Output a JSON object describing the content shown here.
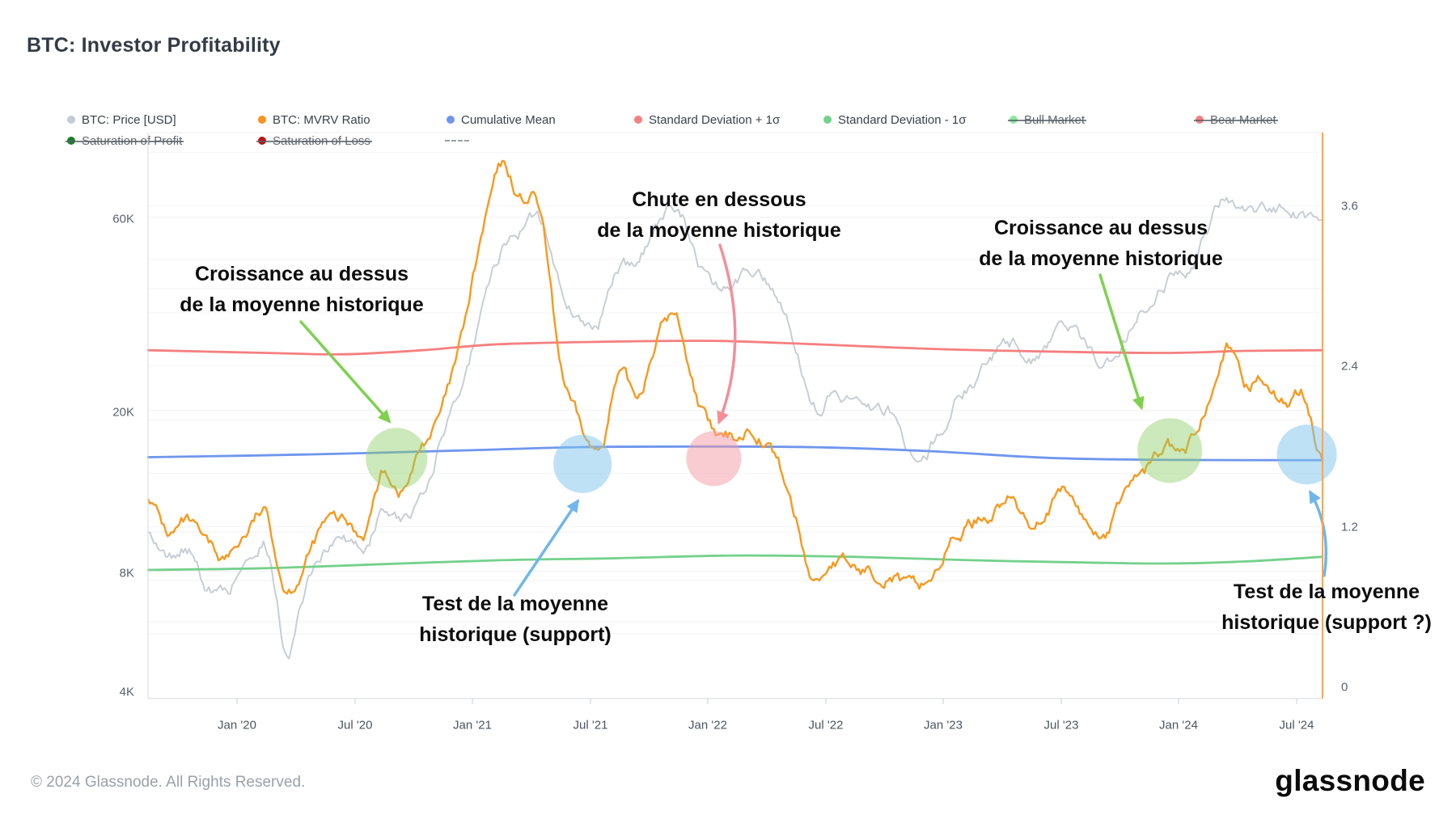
{
  "title": "BTC: Investor Profitability",
  "legend": {
    "row1": [
      {
        "label": "BTC: Price [USD]",
        "color": "#c5cbd2",
        "struck": false
      },
      {
        "label": "BTC: MVRV Ratio",
        "color": "#f7941d",
        "struck": false
      },
      {
        "label": "Cumulative Mean",
        "color": "#6f96ee",
        "struck": false
      },
      {
        "label": "Standard Deviation + 1σ",
        "color": "#f57f7f",
        "struck": false
      },
      {
        "label": "Standard Deviation - 1σ",
        "color": "#74d18c",
        "struck": false
      },
      {
        "label": "Bull Market",
        "color": "#8be89c",
        "struck": true
      },
      {
        "label": "Bear Market",
        "color": "#f28282",
        "struck": true
      }
    ],
    "row2": [
      {
        "label": "Saturation of Profit",
        "color": "#1b7e2b",
        "struck": true
      },
      {
        "label": "Saturation of Loss",
        "color": "#bb1111",
        "struck": true
      }
    ]
  },
  "axis": {
    "y_left": [
      "60K",
      "20K",
      "8K",
      "4K"
    ],
    "y_right": [
      "3.6",
      "2.4",
      "1.2",
      "0"
    ],
    "x": [
      "Jan '20",
      "Jul '20",
      "Jan '21",
      "Jul '21",
      "Jan '22",
      "Jul '22",
      "Jan '23",
      "Jul '23",
      "Jan '24",
      "Jul '24"
    ]
  },
  "annotations": {
    "growth_above_1": [
      "Croissance au dessus",
      "de la moyenne historique"
    ],
    "drop_below": [
      "Chute en dessous",
      "de la moyenne historique"
    ],
    "growth_above_2": [
      "Croissance au dessus",
      "de la moyenne historique"
    ],
    "test_support_1": [
      "Test de la moyenne",
      "historique (support)"
    ],
    "test_support_2": [
      "Test de la moyenne",
      "historique (support ?)"
    ]
  },
  "footer": {
    "copyright": "© 2024 Glassnode. All Rights Reserved.",
    "brand": "glassnode"
  },
  "chart_data": {
    "type": "line",
    "title": "BTC: Investor Profitability",
    "x_start_month": "2019-08",
    "x_months_span": 61,
    "x_tick_labels": [
      "Jan '20",
      "Jul '20",
      "Jan '21",
      "Jul '21",
      "Jan '22",
      "Jul '22",
      "Jan '23",
      "Jul '23",
      "Jan '24",
      "Jul '24"
    ],
    "y_left_axis": {
      "scale": "log",
      "unit": "USD",
      "ticks": [
        60000,
        20000,
        8000,
        4000
      ]
    },
    "y_right_axis": {
      "scale": "linear",
      "unit": "MVRV ratio",
      "ticks": [
        3.6,
        2.4,
        1.2,
        0
      ]
    },
    "grid": {
      "price_lines": [
        60000,
        40000,
        20000,
        10000,
        8000,
        6000
      ],
      "ratio_lines": [
        4.0,
        3.6,
        3.2,
        2.8,
        2.4,
        2.0,
        1.6,
        1.2,
        0.8,
        0.4
      ]
    },
    "series": [
      {
        "name": "BTC: Price [USD]",
        "axis": "left",
        "color": "#c8ced5",
        "resolution": "monthly (approx)",
        "monthly_values": [
          10300,
          8600,
          9100,
          7600,
          7200,
          8600,
          9600,
          5300,
          7100,
          9200,
          9400,
          9200,
          11500,
          10500,
          12900,
          17500,
          23500,
          34000,
          48000,
          57000,
          59000,
          42000,
          34000,
          32500,
          46000,
          45000,
          58000,
          62000,
          49000,
          40000,
          41500,
          44000,
          41000,
          31000,
          21500,
          22000,
          21500,
          19500,
          19800,
          15800,
          16800,
          20500,
          23500,
          26500,
          29000,
          27500,
          28500,
          30000,
          27500,
          26500,
          31000,
          36500,
          43000,
          44000,
          55000,
          68000,
          64000,
          64500,
          64000,
          62000,
          58500
        ]
      },
      {
        "name": "BTC: MVRV Ratio",
        "axis": "right",
        "color": "#f8991f",
        "resolution": "monthly (approx)",
        "monthly_values": [
          1.45,
          1.15,
          1.2,
          1.0,
          0.95,
          1.15,
          1.28,
          0.78,
          0.95,
          1.2,
          1.2,
          1.15,
          1.6,
          1.5,
          1.8,
          2.05,
          2.55,
          3.3,
          3.85,
          3.65,
          3.55,
          2.45,
          1.95,
          1.75,
          2.3,
          2.15,
          2.65,
          2.75,
          2.2,
          1.85,
          1.85,
          1.95,
          1.75,
          1.3,
          0.8,
          0.95,
          0.88,
          0.86,
          0.9,
          0.72,
          0.82,
          1.08,
          1.22,
          1.32,
          1.42,
          1.22,
          1.38,
          1.42,
          1.2,
          1.18,
          1.5,
          1.62,
          1.78,
          1.72,
          2.1,
          2.62,
          2.25,
          2.35,
          2.15,
          2.2,
          1.7
        ]
      },
      {
        "name": "Cumulative Mean",
        "axis": "right",
        "color": "#6f96ee",
        "anchors": [
          [
            0,
            1.72
          ],
          [
            8,
            1.74
          ],
          [
            16,
            1.77
          ],
          [
            22,
            1.795
          ],
          [
            28,
            1.8
          ],
          [
            34,
            1.795
          ],
          [
            40,
            1.765
          ],
          [
            46,
            1.715
          ],
          [
            52,
            1.7
          ],
          [
            60,
            1.698
          ]
        ]
      },
      {
        "name": "Standard Deviation + 1σ",
        "axis": "right",
        "color": "#f57f7f",
        "anchors": [
          [
            0,
            2.52
          ],
          [
            6,
            2.5
          ],
          [
            10,
            2.49
          ],
          [
            14,
            2.52
          ],
          [
            18,
            2.565
          ],
          [
            24,
            2.585
          ],
          [
            29,
            2.59
          ],
          [
            34,
            2.565
          ],
          [
            40,
            2.53
          ],
          [
            46,
            2.51
          ],
          [
            52,
            2.5
          ],
          [
            56,
            2.515
          ],
          [
            60,
            2.52
          ]
        ]
      },
      {
        "name": "Standard Deviation - 1σ",
        "axis": "right",
        "color": "#74d18c",
        "anchors": [
          [
            0,
            0.877
          ],
          [
            6,
            0.89
          ],
          [
            12,
            0.92
          ],
          [
            18,
            0.95
          ],
          [
            24,
            0.965
          ],
          [
            30,
            0.985
          ],
          [
            36,
            0.975
          ],
          [
            42,
            0.95
          ],
          [
            48,
            0.932
          ],
          [
            52,
            0.925
          ],
          [
            56,
            0.94
          ],
          [
            60,
            0.975
          ]
        ]
      }
    ],
    "hidden_series": [
      "Bull Market",
      "Bear Market",
      "Saturation of Profit",
      "Saturation of Loss"
    ],
    "highlights": [
      {
        "name": "growth-above-mean-2020",
        "shape": "circle",
        "color": "#8ecf68",
        "opacity": 0.45,
        "month_index": 12.7,
        "value": 1.71,
        "radius": 38
      },
      {
        "name": "test-of-mean-2021",
        "shape": "circle",
        "color": "#7dc3ec",
        "opacity": 0.5,
        "month_index": 22.2,
        "value": 1.67,
        "radius": 36
      },
      {
        "name": "drop-below-mean-2022",
        "shape": "circle",
        "color": "#f49aa6",
        "opacity": 0.5,
        "month_index": 28.9,
        "value": 1.71,
        "radius": 34
      },
      {
        "name": "growth-above-mean-2023",
        "shape": "circle",
        "color": "#8ecf68",
        "opacity": 0.45,
        "month_index": 52.2,
        "value": 1.77,
        "radius": 40
      },
      {
        "name": "test-of-mean-2024",
        "shape": "circle",
        "color": "#7dc3ec",
        "opacity": 0.5,
        "month_index": 59.2,
        "value": 1.74,
        "radius": 37
      }
    ]
  }
}
